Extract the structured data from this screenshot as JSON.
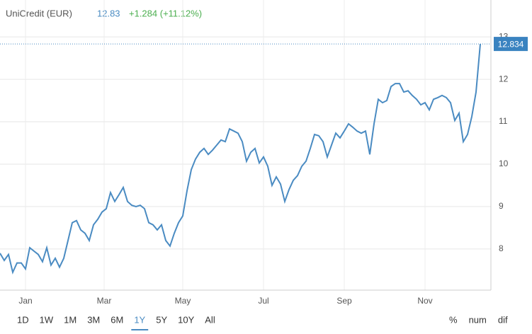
{
  "chart_data": {
    "type": "line",
    "title": "UniCredit (EUR)",
    "price": "12.83",
    "change": "+1.284 (+11.12%)",
    "last_label": "12.834",
    "series": [
      {
        "name": "UniCredit (EUR)",
        "color": "#4a8bc2",
        "values": [
          7.9,
          7.73,
          7.87,
          7.45,
          7.67,
          7.67,
          7.53,
          8.03,
          7.95,
          7.87,
          7.7,
          8.03,
          7.62,
          7.78,
          7.57,
          7.78,
          8.2,
          8.62,
          8.67,
          8.45,
          8.37,
          8.2,
          8.57,
          8.7,
          8.87,
          8.95,
          9.33,
          9.12,
          9.28,
          9.45,
          9.12,
          9.03,
          9.0,
          9.03,
          8.95,
          8.62,
          8.57,
          8.45,
          8.57,
          8.2,
          8.07,
          8.37,
          8.62,
          8.78,
          9.37,
          9.87,
          10.12,
          10.28,
          10.37,
          10.23,
          10.33,
          10.45,
          10.57,
          10.53,
          10.83,
          10.78,
          10.73,
          10.53,
          10.07,
          10.28,
          10.37,
          10.03,
          10.17,
          9.95,
          9.5,
          9.7,
          9.53,
          9.12,
          9.4,
          9.62,
          9.73,
          9.95,
          10.07,
          10.37,
          10.7,
          10.67,
          10.53,
          10.17,
          10.45,
          10.73,
          10.62,
          10.78,
          10.95,
          10.87,
          10.78,
          10.73,
          10.78,
          10.23,
          10.95,
          11.53,
          11.45,
          11.5,
          11.83,
          11.9,
          11.9,
          11.7,
          11.73,
          11.62,
          11.53,
          11.4,
          11.45,
          11.28,
          11.53,
          11.57,
          11.62,
          11.57,
          11.45,
          11.03,
          11.2,
          10.53,
          10.7,
          11.12,
          11.7,
          12.834
        ]
      }
    ],
    "ylim": [
      7.03,
      13.87
    ],
    "yticks": [
      8,
      9,
      10,
      11,
      12,
      13
    ],
    "xticks": [
      {
        "value": 6,
        "label": "Jan"
      },
      {
        "value": 24.5,
        "label": "Mar"
      },
      {
        "value": 43,
        "label": "May"
      },
      {
        "value": 62,
        "label": "Jul"
      },
      {
        "value": 81,
        "label": "Sep"
      },
      {
        "value": 100,
        "label": "Nov"
      }
    ],
    "grid": true,
    "ranges": [
      "1D",
      "1W",
      "1M",
      "3M",
      "6M",
      "1Y",
      "5Y",
      "10Y",
      "All"
    ],
    "selected_range": "1Y",
    "modes": [
      "%",
      "num",
      "dif"
    ]
  }
}
